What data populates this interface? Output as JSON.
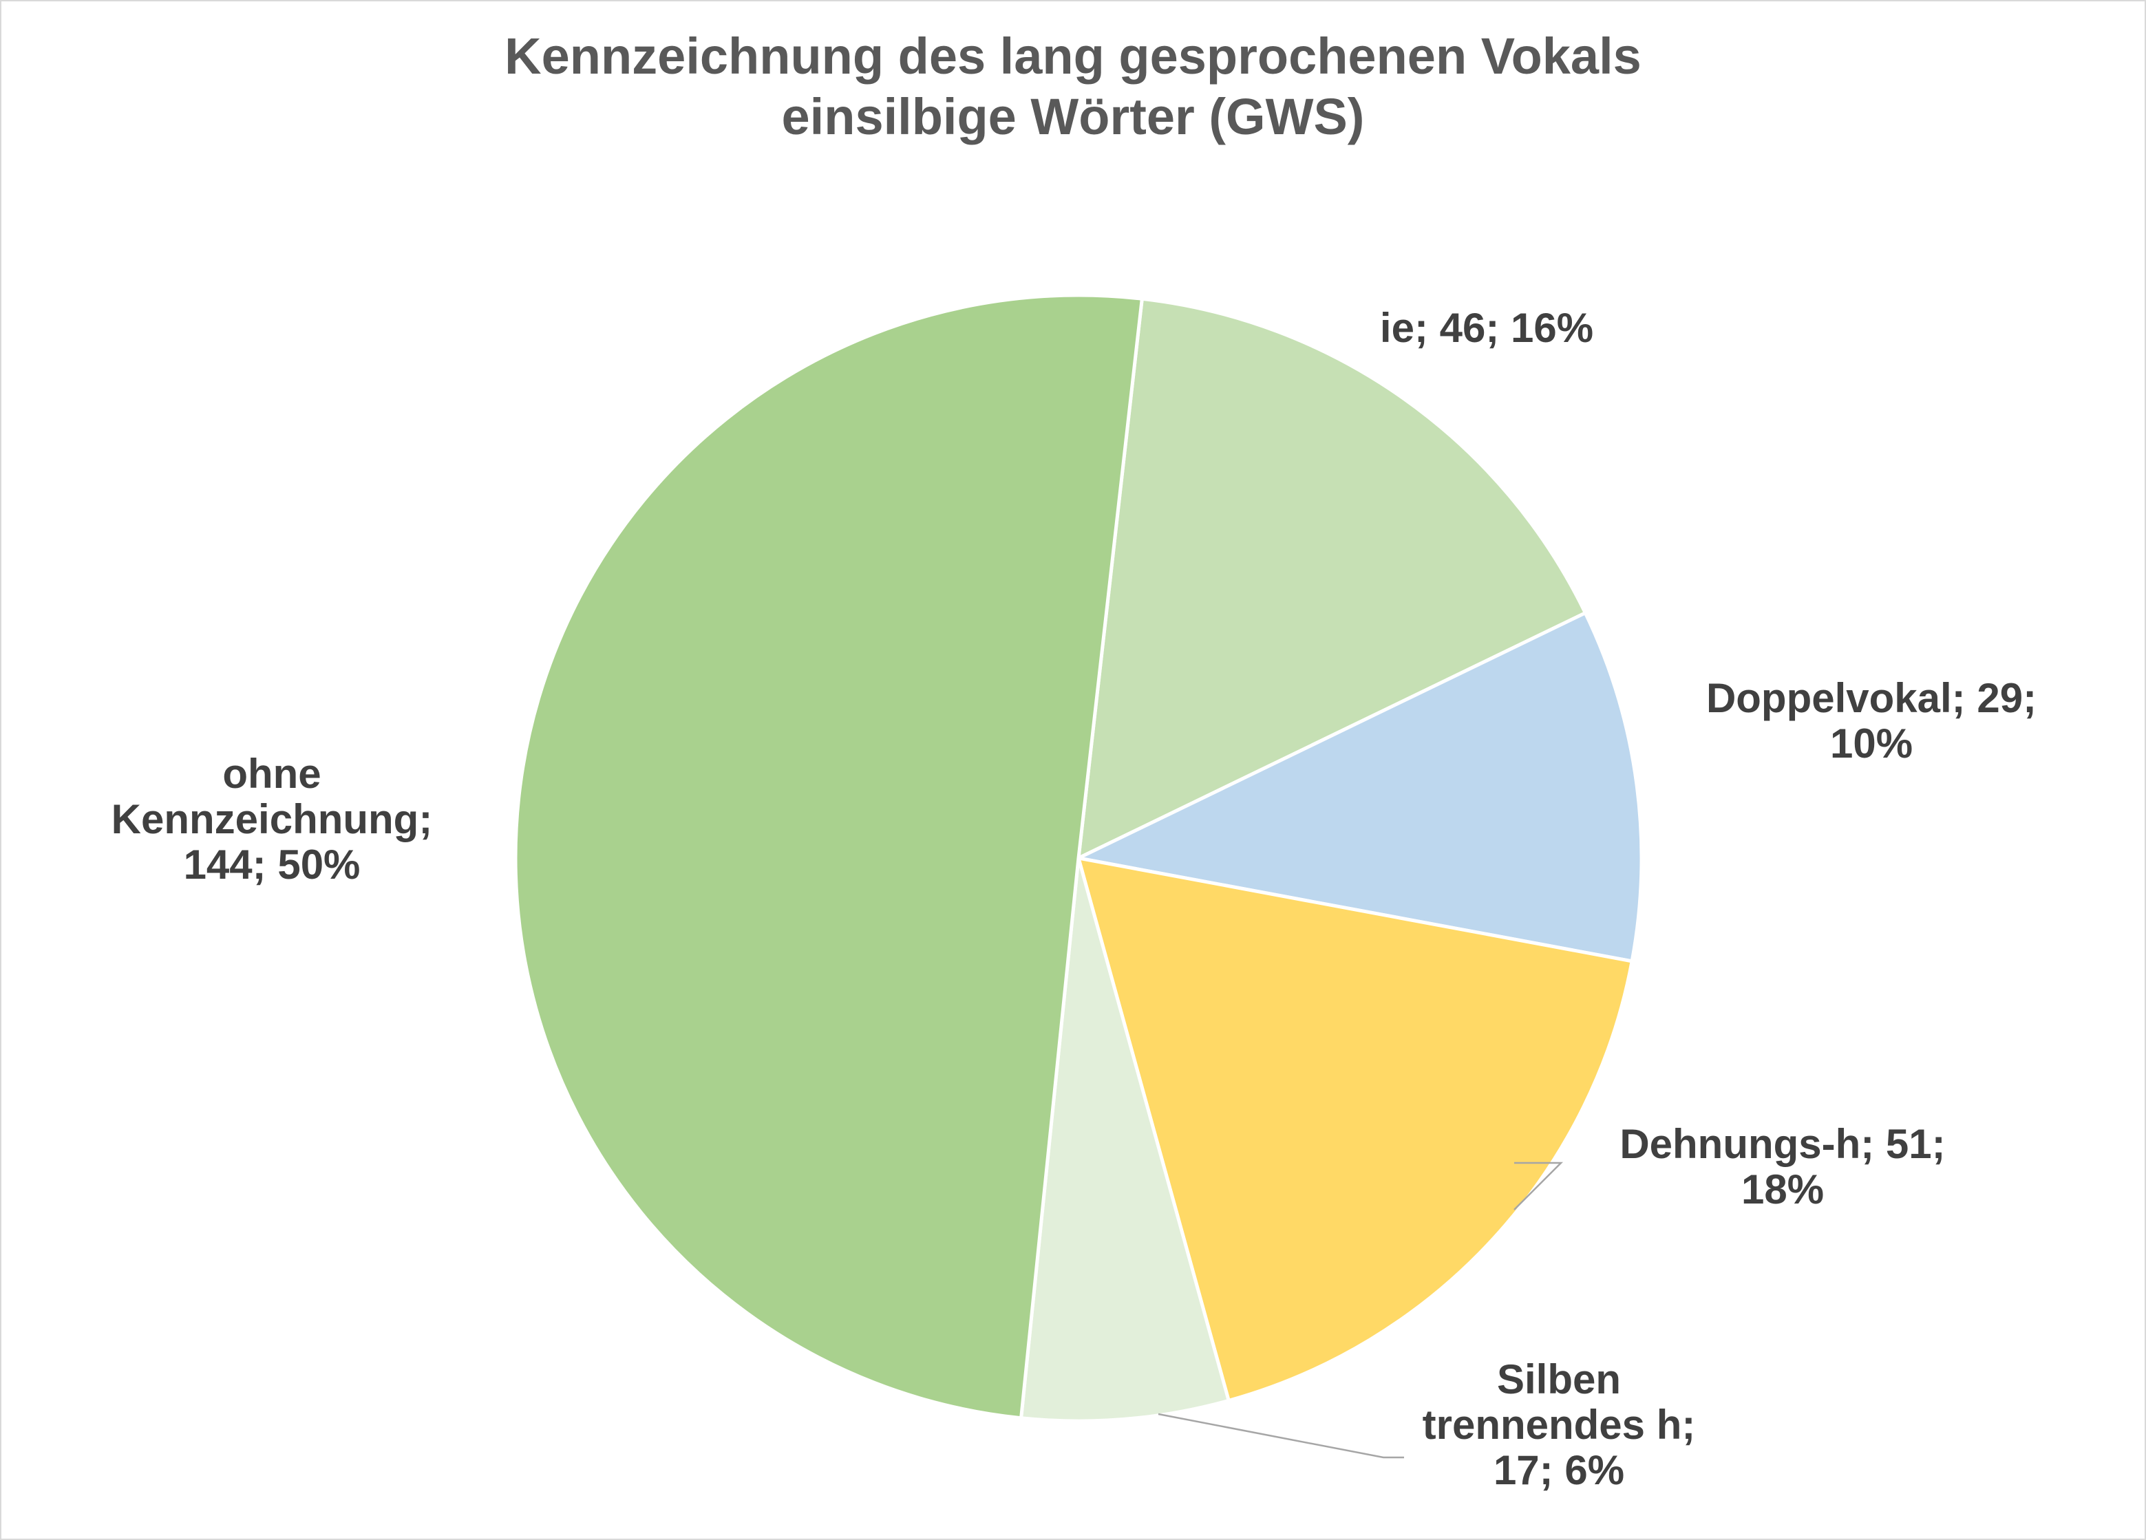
{
  "chart_data": {
    "type": "pie",
    "title": "Kennzeichnung des lang gesprochenen Vokals",
    "subtitle": "einsilbige Wörter (GWS)",
    "slices": [
      {
        "name": "ie",
        "value": 46,
        "percent": "16%",
        "color": "#c6e0b4",
        "label_lines": [
          "ie; 46; 16%"
        ]
      },
      {
        "name": "Doppelvokal",
        "value": 29,
        "percent": "10%",
        "color": "#bdd7ee",
        "label_lines": [
          "Doppelvokal; 29;",
          "10%"
        ]
      },
      {
        "name": "Dehnungs-h",
        "value": 51,
        "percent": "18%",
        "color": "#ffd966",
        "label_lines": [
          "Dehnungs-h; 51;",
          "18%"
        ]
      },
      {
        "name": "Silben trennendes h",
        "value": 17,
        "percent": "6%",
        "color": "#e2efda",
        "label_lines": [
          "Silben",
          "trennendes h;",
          "17; 6%"
        ]
      },
      {
        "name": "ohne Kennzeichnung",
        "value": 144,
        "percent": "50%",
        "color": "#a9d18e",
        "label_lines": [
          "ohne",
          "Kennzeichnung;",
          "144; 50%"
        ]
      }
    ],
    "start_direction": "12 o'clock",
    "rotation": "clockwise",
    "legend": "none",
    "data_labels": "category; value; percent"
  }
}
